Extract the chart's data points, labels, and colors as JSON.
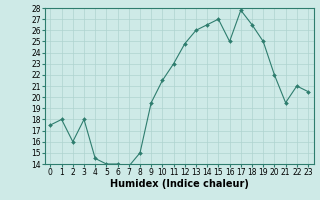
{
  "x": [
    0,
    1,
    2,
    3,
    4,
    5,
    6,
    7,
    8,
    9,
    10,
    11,
    12,
    13,
    14,
    15,
    16,
    17,
    18,
    19,
    20,
    21,
    22,
    23
  ],
  "y": [
    17.5,
    18,
    16,
    18,
    14.5,
    14,
    14,
    13.8,
    15,
    19.5,
    21.5,
    23,
    24.8,
    26,
    26.5,
    27,
    25,
    27.8,
    26.5,
    25,
    22,
    19.5,
    21,
    20.5
  ],
  "line_color": "#2e7d6e",
  "marker": "D",
  "marker_size": 2,
  "bg_color": "#ceeae7",
  "grid_color": "#afd4d0",
  "xlabel": "Humidex (Indice chaleur)",
  "ylim": [
    14,
    28
  ],
  "xlim": [
    -0.5,
    23.5
  ],
  "yticks": [
    14,
    15,
    16,
    17,
    18,
    19,
    20,
    21,
    22,
    23,
    24,
    25,
    26,
    27,
    28
  ],
  "xticks": [
    0,
    1,
    2,
    3,
    4,
    5,
    6,
    7,
    8,
    9,
    10,
    11,
    12,
    13,
    14,
    15,
    16,
    17,
    18,
    19,
    20,
    21,
    22,
    23
  ],
  "tick_label_size": 5.5,
  "xlabel_size": 7,
  "spine_color": "#2e7d6e"
}
